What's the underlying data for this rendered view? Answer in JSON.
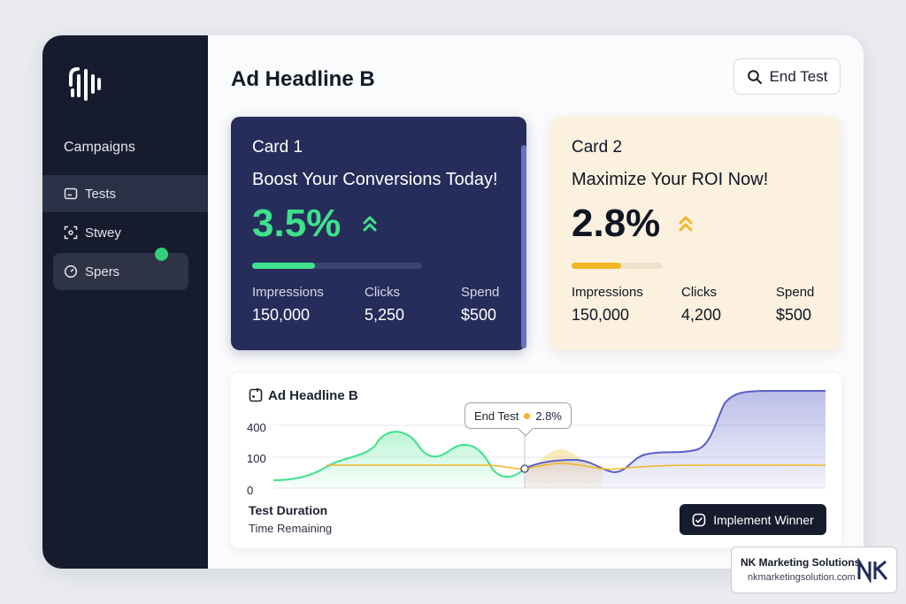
{
  "sidebar": {
    "heading": "Campaigns",
    "items": [
      {
        "label": "Tests",
        "icon": "card-icon"
      },
      {
        "label": "Stwey",
        "icon": "scan-icon"
      },
      {
        "label": "Spers",
        "icon": "gauge-icon"
      }
    ]
  },
  "header": {
    "title": "Ad Headline B",
    "end_test_label": "End Test"
  },
  "cards": [
    {
      "label": "Card 1",
      "headline": "Boost Your Conversions Today!",
      "rate": "3.5%",
      "progress": 0.37,
      "metrics": {
        "impressions_label": "Impressions",
        "impressions": "150,000",
        "clicks_label": "Clicks",
        "clicks": "5,250",
        "spend_label": "Spend",
        "spend": "$500"
      }
    },
    {
      "label": "Card 2",
      "headline": "Maximize Your ROI Now!",
      "rate": "2.8%",
      "progress": 0.54,
      "metrics": {
        "impressions_label": "Impressions",
        "impressions": "150,000",
        "clicks_label": "Clicks",
        "clicks": "4,200",
        "spend_label": "Spend",
        "spend": "$500"
      }
    }
  ],
  "chart": {
    "title": "Ad Headline B",
    "y_ticks": [
      "400",
      "100",
      "0"
    ],
    "tooltip": {
      "label": "End Test",
      "value": "2.8%"
    },
    "duration_title": "Test Duration",
    "duration_sub": "Time Remaining",
    "implement_label": "Implement Winner"
  },
  "colors": {
    "green": "#3ee28a",
    "amber": "#f2b526",
    "indigo": "#5b5fc7",
    "navy": "#161b2e"
  },
  "watermark": {
    "name": "NK Marketing Solutions",
    "url": "nkmarketingsolution.com"
  }
}
